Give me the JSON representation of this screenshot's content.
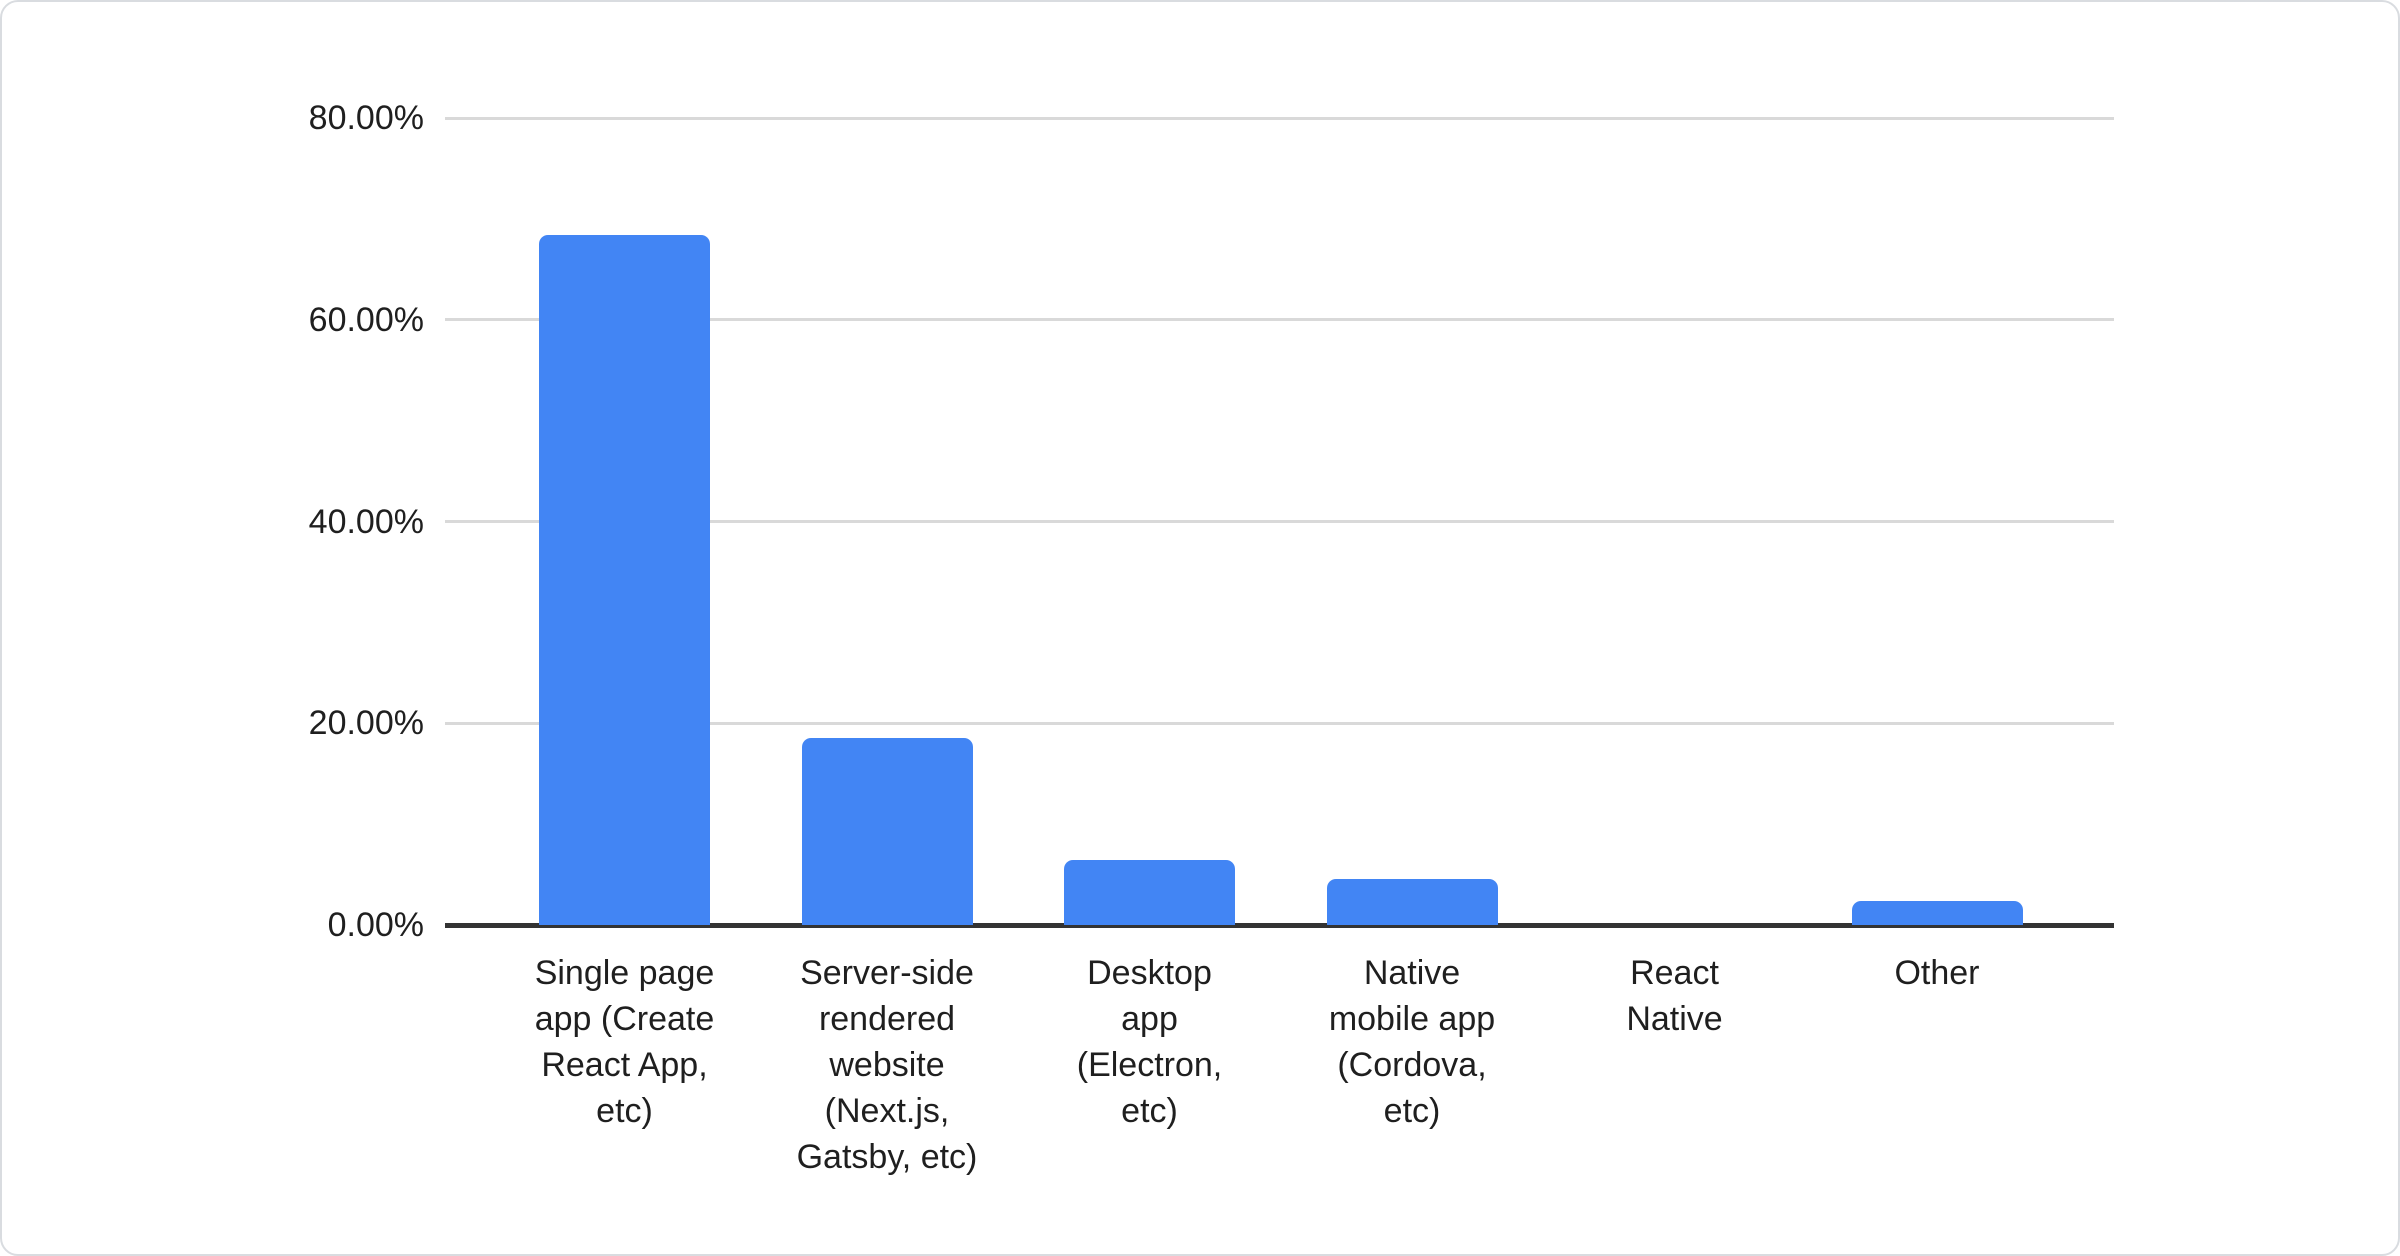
{
  "chart_data": {
    "type": "bar",
    "title": "",
    "xlabel": "",
    "ylabel": "",
    "categories": [
      "Single page app (Create React App, etc)",
      "Server-side rendered website (Next.js, Gatsby, etc)",
      "Desktop app (Electron, etc)",
      "Native mobile app (Cordova, etc)",
      "React Native",
      "Other"
    ],
    "category_label_lines": [
      [
        "Single page",
        "app (Create",
        "React App,",
        "etc)"
      ],
      [
        "Server-side",
        "rendered",
        "website",
        "(Next.js,",
        "Gatsby, etc)"
      ],
      [
        "Desktop",
        "app",
        "(Electron,",
        "etc)"
      ],
      [
        "Native",
        "mobile app",
        "(Cordova,",
        "etc)"
      ],
      [
        "React",
        "Native"
      ],
      [
        "Other"
      ]
    ],
    "values": [
      68.4,
      18.5,
      6.4,
      4.6,
      0,
      2.4
    ],
    "ylim": [
      0,
      80
    ],
    "yticks": [
      {
        "value": 0,
        "label": "0.00%"
      },
      {
        "value": 20,
        "label": "20.00%"
      },
      {
        "value": 40,
        "label": "40.00%"
      },
      {
        "value": 60,
        "label": "60.00%"
      },
      {
        "value": 80,
        "label": "80.00%"
      }
    ],
    "grid": true,
    "legend_position": "none",
    "colors": {
      "bar": "#4285f4",
      "gridline": "#d9d9d9",
      "axis": "#333333",
      "text": "#1f1f1f",
      "card_border": "#d9dce0",
      "background": "#ffffff"
    }
  }
}
